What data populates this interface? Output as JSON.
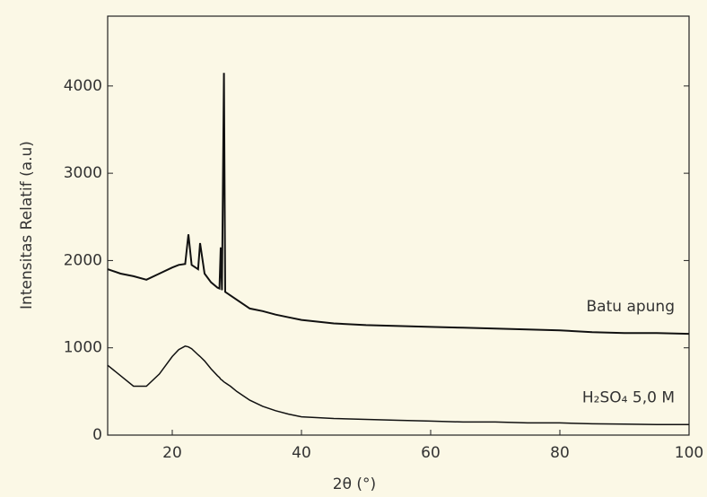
{
  "chart_data": {
    "type": "line",
    "x_label": "2θ (°)",
    "y_label": "Intensitas Relatif (a.u)",
    "x": [
      10,
      12,
      14,
      16,
      18,
      20,
      21,
      22,
      22.5,
      23,
      24,
      24.3,
      25,
      26,
      27,
      27.3,
      27.5,
      27.7,
      28,
      28.2,
      29,
      30,
      32,
      34,
      36,
      38,
      40,
      45,
      50,
      55,
      60,
      65,
      70,
      75,
      80,
      85,
      90,
      95,
      100
    ],
    "series": [
      {
        "name": "Batu apung",
        "color": "#111111",
        "values": [
          1900,
          1850,
          1820,
          1780,
          1850,
          1920,
          1950,
          1960,
          2300,
          1950,
          1900,
          2200,
          1850,
          1750,
          1690,
          1680,
          2150,
          1660,
          4150,
          1640,
          1600,
          1550,
          1450,
          1420,
          1380,
          1350,
          1320,
          1280,
          1260,
          1250,
          1240,
          1230,
          1220,
          1210,
          1200,
          1180,
          1170,
          1170,
          1160
        ]
      },
      {
        "name": "H₂SO₄ 5,0 M",
        "color": "#111111",
        "values": [
          800,
          680,
          560,
          560,
          700,
          900,
          980,
          1020,
          1010,
          990,
          920,
          900,
          850,
          760,
          680,
          660,
          640,
          630,
          610,
          600,
          560,
          500,
          400,
          330,
          280,
          240,
          210,
          190,
          180,
          170,
          160,
          150,
          150,
          140,
          140,
          130,
          125,
          120,
          120
        ]
      }
    ],
    "xlim": [
      10,
      100
    ],
    "xticks": [
      20,
      40,
      60,
      80,
      100
    ],
    "ylim": [
      0,
      4800
    ],
    "yticks": [
      0,
      1000,
      2000,
      3000,
      4000
    ]
  }
}
